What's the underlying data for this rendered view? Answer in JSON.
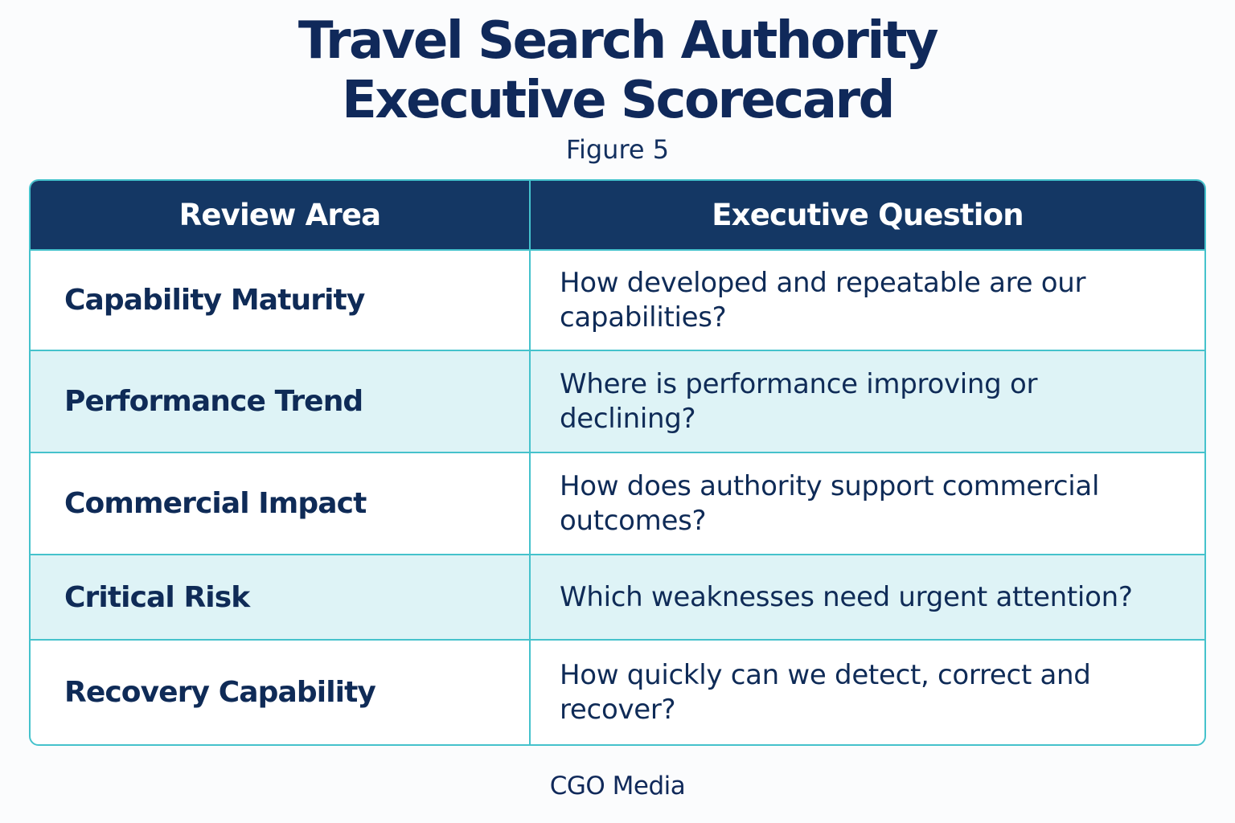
{
  "header": {
    "title_line_1": "Travel Search Authority",
    "title_line_2": "Executive Scorecard",
    "subtitle": "Figure 5"
  },
  "table": {
    "columns": [
      "Review Area",
      "Executive Question"
    ],
    "rows": [
      {
        "area": "Capability Maturity",
        "question": "How developed and repeatable are our\ncapabilities?"
      },
      {
        "area": "Performance Trend",
        "question": "Where is performance improving or\ndeclining?"
      },
      {
        "area": "Commercial Impact",
        "question": "How does authority support commercial\noutcomes?"
      },
      {
        "area": "Critical Risk",
        "question": "Which weaknesses need urgent attention?"
      },
      {
        "area": "Recovery Capability",
        "question": "How quickly can we detect, correct and\nrecover?"
      }
    ]
  },
  "footer": {
    "credit": "CGO Media"
  },
  "colors": {
    "header_bg": "#143764",
    "border": "#45c2cc",
    "alt_row_bg": "#def3f6",
    "text": "#0f2b57"
  }
}
